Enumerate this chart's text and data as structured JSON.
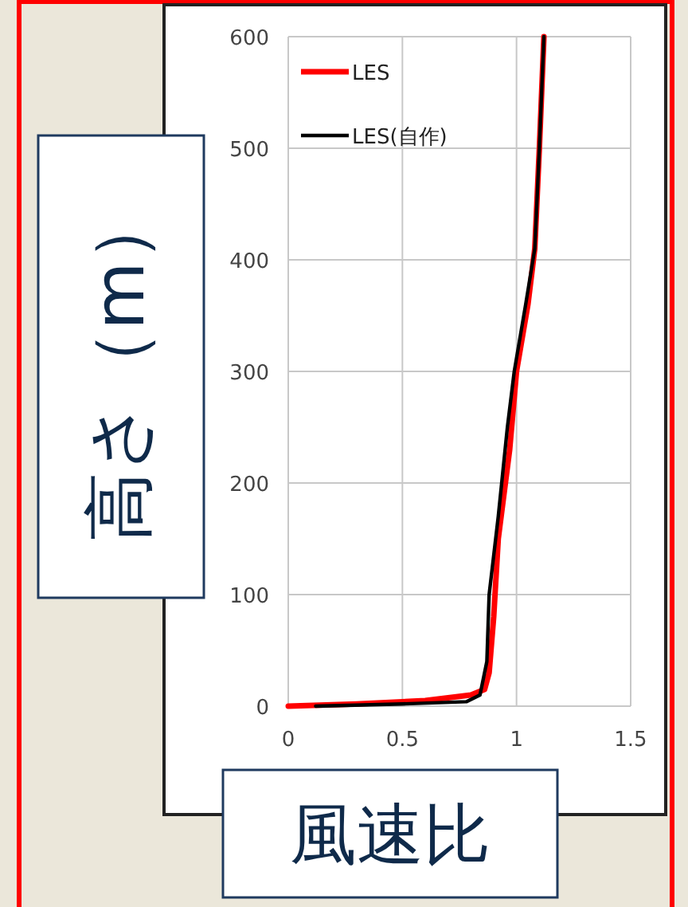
{
  "chart_data": {
    "type": "line",
    "xlabel": "風速比",
    "ylabel": "高さ（m）",
    "xlim": [
      0,
      1.5
    ],
    "ylim": [
      0,
      600
    ],
    "xticks": [
      0,
      0.5,
      1,
      1.5
    ],
    "yticks": [
      0,
      100,
      200,
      300,
      400,
      500,
      600
    ],
    "grid": true,
    "legend": "top left",
    "marker": "none",
    "line_style": "solid",
    "series": [
      {
        "name": "LES",
        "color": "#ff0000",
        "x": [
          0,
          0.3,
          0.6,
          0.8,
          0.86,
          0.88,
          0.9,
          0.92,
          0.97,
          1.0,
          1.05,
          1.08,
          1.1,
          1.12
        ],
        "values": [
          0,
          2,
          5,
          10,
          15,
          30,
          80,
          150,
          230,
          300,
          360,
          410,
          500,
          600
        ]
      },
      {
        "name": "LES(自作)",
        "color": "#000000",
        "x": [
          0.12,
          0.5,
          0.78,
          0.84,
          0.87,
          0.88,
          0.92,
          0.96,
          0.99,
          1.04,
          1.08,
          1.1,
          1.12
        ],
        "values": [
          0,
          2,
          4,
          10,
          40,
          100,
          170,
          250,
          300,
          360,
          410,
          500,
          600
        ]
      }
    ]
  }
}
